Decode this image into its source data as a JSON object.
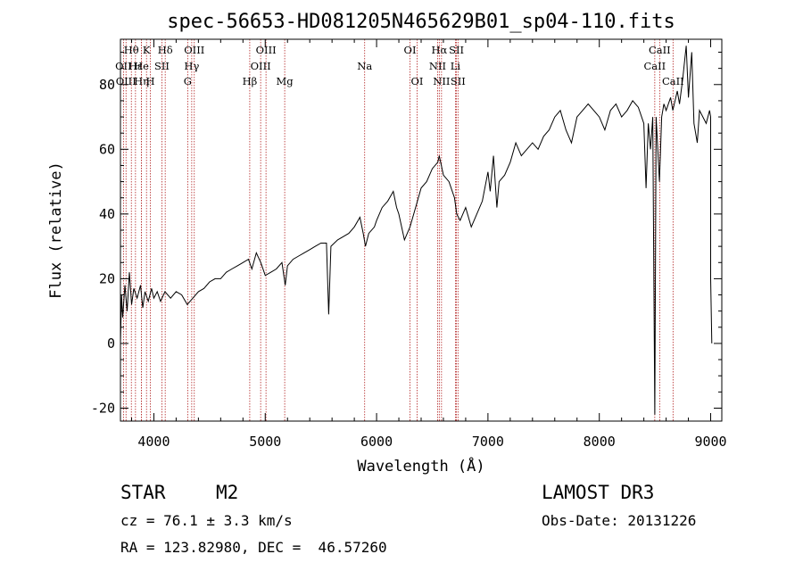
{
  "chart_data": {
    "type": "line",
    "title": "spec-56653-HD081205N465629B01_sp04-110.fits",
    "xlabel": "Wavelength (Å)",
    "ylabel": "Flux (relative)",
    "xlim": [
      3700,
      9100
    ],
    "ylim": [
      -24,
      94
    ],
    "xticks": [
      4000,
      5000,
      6000,
      7000,
      8000,
      9000
    ],
    "yticks": [
      -20,
      0,
      20,
      40,
      60,
      80
    ],
    "series": [
      {
        "name": "spectrum",
        "points": [
          [
            3700,
            0
          ],
          [
            3710,
            15
          ],
          [
            3720,
            8
          ],
          [
            3740,
            18
          ],
          [
            3760,
            10
          ],
          [
            3780,
            22
          ],
          [
            3800,
            12
          ],
          [
            3820,
            17
          ],
          [
            3850,
            14
          ],
          [
            3880,
            18
          ],
          [
            3900,
            11
          ],
          [
            3920,
            16
          ],
          [
            3950,
            13
          ],
          [
            3980,
            17
          ],
          [
            4000,
            14
          ],
          [
            4030,
            16
          ],
          [
            4060,
            13
          ],
          [
            4100,
            16
          ],
          [
            4150,
            14
          ],
          [
            4200,
            16
          ],
          [
            4250,
            15
          ],
          [
            4300,
            12
          ],
          [
            4350,
            14
          ],
          [
            4400,
            16
          ],
          [
            4450,
            17
          ],
          [
            4500,
            19
          ],
          [
            4550,
            20
          ],
          [
            4600,
            20
          ],
          [
            4650,
            22
          ],
          [
            4700,
            23
          ],
          [
            4750,
            24
          ],
          [
            4800,
            25
          ],
          [
            4850,
            26
          ],
          [
            4880,
            23
          ],
          [
            4920,
            28
          ],
          [
            4960,
            25
          ],
          [
            5000,
            21
          ],
          [
            5050,
            22
          ],
          [
            5100,
            23
          ],
          [
            5150,
            25
          ],
          [
            5180,
            18
          ],
          [
            5200,
            24
          ],
          [
            5250,
            26
          ],
          [
            5300,
            27
          ],
          [
            5350,
            28
          ],
          [
            5400,
            29
          ],
          [
            5450,
            30
          ],
          [
            5500,
            31
          ],
          [
            5550,
            31
          ],
          [
            5570,
            9
          ],
          [
            5590,
            30
          ],
          [
            5650,
            32
          ],
          [
            5700,
            33
          ],
          [
            5750,
            34
          ],
          [
            5800,
            36
          ],
          [
            5850,
            39
          ],
          [
            5880,
            34
          ],
          [
            5900,
            30
          ],
          [
            5930,
            34
          ],
          [
            5980,
            36
          ],
          [
            6000,
            38
          ],
          [
            6050,
            42
          ],
          [
            6100,
            44
          ],
          [
            6150,
            47
          ],
          [
            6180,
            42
          ],
          [
            6200,
            40
          ],
          [
            6250,
            32
          ],
          [
            6300,
            36
          ],
          [
            6350,
            42
          ],
          [
            6400,
            48
          ],
          [
            6450,
            50
          ],
          [
            6500,
            54
          ],
          [
            6550,
            56
          ],
          [
            6563,
            58
          ],
          [
            6600,
            52
          ],
          [
            6650,
            50
          ],
          [
            6700,
            45
          ],
          [
            6720,
            40
          ],
          [
            6750,
            38
          ],
          [
            6800,
            42
          ],
          [
            6850,
            36
          ],
          [
            6900,
            40
          ],
          [
            6950,
            44
          ],
          [
            7000,
            53
          ],
          [
            7020,
            47
          ],
          [
            7050,
            58
          ],
          [
            7080,
            42
          ],
          [
            7100,
            50
          ],
          [
            7150,
            52
          ],
          [
            7200,
            56
          ],
          [
            7250,
            62
          ],
          [
            7300,
            58
          ],
          [
            7350,
            60
          ],
          [
            7400,
            62
          ],
          [
            7450,
            60
          ],
          [
            7500,
            64
          ],
          [
            7550,
            66
          ],
          [
            7600,
            70
          ],
          [
            7650,
            72
          ],
          [
            7700,
            66
          ],
          [
            7750,
            62
          ],
          [
            7800,
            70
          ],
          [
            7850,
            72
          ],
          [
            7900,
            74
          ],
          [
            7950,
            72
          ],
          [
            8000,
            70
          ],
          [
            8050,
            66
          ],
          [
            8100,
            72
          ],
          [
            8150,
            74
          ],
          [
            8200,
            70
          ],
          [
            8250,
            72
          ],
          [
            8300,
            75
          ],
          [
            8350,
            73
          ],
          [
            8400,
            68
          ],
          [
            8420,
            48
          ],
          [
            8440,
            68
          ],
          [
            8460,
            60
          ],
          [
            8480,
            70
          ],
          [
            8498,
            -22
          ],
          [
            8510,
            70
          ],
          [
            8540,
            50
          ],
          [
            8560,
            70
          ],
          [
            8580,
            74
          ],
          [
            8600,
            72
          ],
          [
            8640,
            76
          ],
          [
            8660,
            72
          ],
          [
            8700,
            78
          ],
          [
            8720,
            74
          ],
          [
            8750,
            82
          ],
          [
            8780,
            92
          ],
          [
            8800,
            76
          ],
          [
            8830,
            90
          ],
          [
            8850,
            68
          ],
          [
            8880,
            62
          ],
          [
            8900,
            72
          ],
          [
            8930,
            70
          ],
          [
            8960,
            68
          ],
          [
            8990,
            72
          ],
          [
            9000,
            70
          ],
          [
            9000,
            20
          ],
          [
            9010,
            0
          ]
        ]
      }
    ],
    "lines": [
      {
        "label": "Hθ",
        "wave": 3798,
        "row": 0
      },
      {
        "label": "OII",
        "wave": 3727,
        "row": 1
      },
      {
        "label": "OIII",
        "wave": 3750,
        "row": 2
      },
      {
        "label": "Hε",
        "wave": 3835,
        "row": 1
      },
      {
        "label": "Hη",
        "wave": 3889,
        "row": 2
      },
      {
        "label": "K",
        "wave": 3934,
        "row": 0
      },
      {
        "label": "He",
        "wave": 3889,
        "row": 1
      },
      {
        "label": "SII",
        "wave": 4072,
        "row": 1
      },
      {
        "label": "H",
        "wave": 3969,
        "row": 2
      },
      {
        "label": "Hδ",
        "wave": 4102,
        "row": 0
      },
      {
        "label": "OIII",
        "wave": 4363,
        "row": 0
      },
      {
        "label": "Hγ",
        "wave": 4340,
        "row": 1
      },
      {
        "label": "G",
        "wave": 4304,
        "row": 2
      },
      {
        "label": "Hβ",
        "wave": 4861,
        "row": 2
      },
      {
        "label": "OIII",
        "wave": 5007,
        "row": 0
      },
      {
        "label": "OIII",
        "wave": 4959,
        "row": 1
      },
      {
        "label": "Mg",
        "wave": 5175,
        "row": 2
      },
      {
        "label": "Na",
        "wave": 5893,
        "row": 1
      },
      {
        "label": "OI",
        "wave": 6300,
        "row": 0
      },
      {
        "label": "OI",
        "wave": 6364,
        "row": 2
      },
      {
        "label": "Hα",
        "wave": 6563,
        "row": 0
      },
      {
        "label": "NII",
        "wave": 6548,
        "row": 1
      },
      {
        "label": "NII",
        "wave": 6583,
        "row": 2
      },
      {
        "label": "SII",
        "wave": 6717,
        "row": 0
      },
      {
        "label": "Li",
        "wave": 6708,
        "row": 1
      },
      {
        "label": "SII",
        "wave": 6731,
        "row": 2
      },
      {
        "label": "CaII",
        "wave": 8542,
        "row": 0
      },
      {
        "label": "CaII",
        "wave": 8498,
        "row": 1
      },
      {
        "label": "CaII",
        "wave": 8662,
        "row": 2
      }
    ]
  },
  "info": {
    "class": "STAR",
    "subclass": "M2",
    "survey": "LAMOST DR3",
    "cz": "cz = 76.1 ± 3.3 km/s",
    "obs_date": "Obs-Date: 20131226",
    "radec": "RA = 123.82980, DEC =  46.57260"
  }
}
